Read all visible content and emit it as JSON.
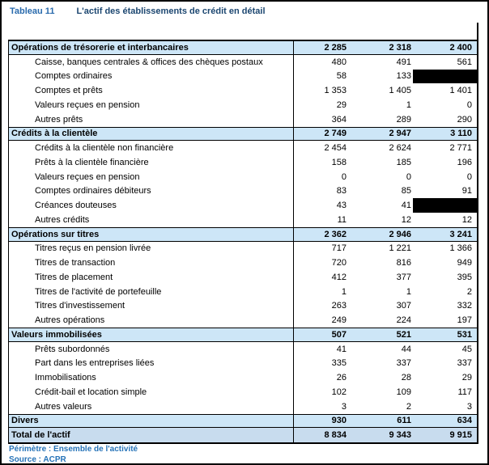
{
  "title": {
    "label": "Tableau 11",
    "text": "L'actif des établissements de crédit en détail"
  },
  "table": {
    "sections": [
      {
        "type": "section",
        "label": "Opérations de trésorerie et interbancaires",
        "values": [
          "2 285",
          "2 318",
          "2 400"
        ],
        "rows": [
          {
            "label": "Caisse, banques centrales & offices des chèques postaux",
            "values": [
              "480",
              "491",
              "561"
            ]
          },
          {
            "label": "Comptes ordinaires",
            "values": [
              "58",
              "133",
              null
            ]
          },
          {
            "label": "Comptes et prêts",
            "values": [
              "1 353",
              "1 405",
              "1 401"
            ]
          },
          {
            "label": "Valeurs reçues en pension",
            "values": [
              "29",
              "1",
              "0"
            ]
          },
          {
            "label": "Autres prêts",
            "values": [
              "364",
              "289",
              "290"
            ]
          }
        ]
      },
      {
        "type": "section",
        "label": "Crédits à la clientèle",
        "values": [
          "2 749",
          "2 947",
          "3 110"
        ],
        "rows": [
          {
            "label": "Crédits à la clientèle non financière",
            "values": [
              "2 454",
              "2 624",
              "2 771"
            ]
          },
          {
            "label": "Prêts à la clientèle financière",
            "values": [
              "158",
              "185",
              "196"
            ]
          },
          {
            "label": "Valeurs reçues en pension",
            "values": [
              "0",
              "0",
              "0"
            ]
          },
          {
            "label": "Comptes ordinaires débiteurs",
            "values": [
              "83",
              "85",
              "91"
            ]
          },
          {
            "label": "Créances douteuses",
            "values": [
              "43",
              "41",
              null
            ]
          },
          {
            "label": "Autres crédits",
            "values": [
              "11",
              "12",
              "12"
            ]
          }
        ]
      },
      {
        "type": "section",
        "label": "Opérations sur titres",
        "values": [
          "2 362",
          "2 946",
          "3 241"
        ],
        "rows": [
          {
            "label": "Titres reçus en pension livrée",
            "values": [
              "717",
              "1 221",
              "1 366"
            ]
          },
          {
            "label": "Titres de transaction",
            "values": [
              "720",
              "816",
              "949"
            ]
          },
          {
            "label": "Titres de placement",
            "values": [
              "412",
              "377",
              "395"
            ]
          },
          {
            "label": "Titres de l'activité de portefeuille",
            "values": [
              "1",
              "1",
              "2"
            ]
          },
          {
            "label": "Titres d'investissement",
            "values": [
              "263",
              "307",
              "332"
            ]
          },
          {
            "label": "Autres opérations",
            "values": [
              "249",
              "224",
              "197"
            ]
          }
        ]
      },
      {
        "type": "section",
        "label": "Valeurs immobilisées",
        "values": [
          "507",
          "521",
          "531"
        ],
        "rows": [
          {
            "label": "Prêts subordonnés",
            "values": [
              "41",
              "44",
              "45"
            ]
          },
          {
            "label": "Part dans les entreprises liées",
            "values": [
              "335",
              "337",
              "337"
            ]
          },
          {
            "label": "Immobilisations",
            "values": [
              "26",
              "28",
              "29"
            ]
          },
          {
            "label": "Crédit-bail et location simple",
            "values": [
              "102",
              "109",
              "117"
            ]
          },
          {
            "label": "Autres valeurs",
            "values": [
              "3",
              "2",
              "3"
            ]
          }
        ]
      },
      {
        "type": "section",
        "label": "Divers",
        "values": [
          "930",
          "611",
          "634"
        ],
        "rows": []
      },
      {
        "type": "total",
        "label": "Total de l'actif",
        "values": [
          "8 834",
          "9 343",
          "9 915"
        ],
        "rows": []
      }
    ]
  },
  "footnotes": {
    "perimetre": "Périmètre : Ensemble de l'activité",
    "source": "Source : ACPR"
  },
  "colors": {
    "section_row_bg": "#CDE6F7",
    "total_row_bg": "#C8DCEE",
    "title_label_blue": "#2A6BAD",
    "title_text_blue": "#1B4670",
    "footnote_blue": "#2673B8",
    "redaction": "#000000"
  }
}
